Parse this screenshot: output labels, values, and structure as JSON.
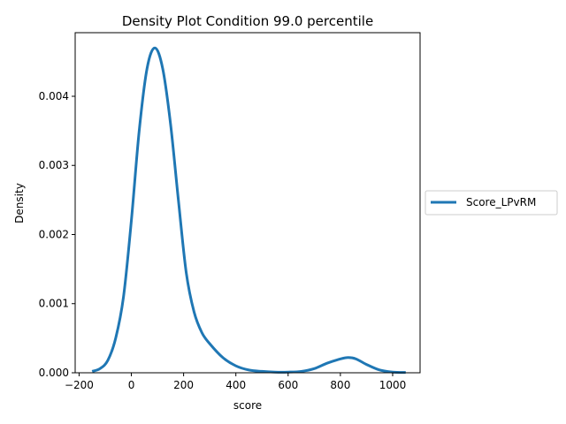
{
  "chart_data": {
    "type": "line",
    "title": "Density Plot Condition 99.0 percentile",
    "xlabel": "score",
    "ylabel": "Density",
    "xlim": [
      -215,
      1105
    ],
    "ylim": [
      0,
      0.00492
    ],
    "xticks": [
      -200,
      0,
      200,
      400,
      600,
      800,
      1000
    ],
    "xtick_labels": [
      "−200",
      "0",
      "200",
      "400",
      "600",
      "800",
      "1000"
    ],
    "yticks": [
      0,
      0.001,
      0.002,
      0.003,
      0.004
    ],
    "ytick_labels": [
      "0.000",
      "0.001",
      "0.002",
      "0.003",
      "0.004"
    ],
    "grid": false,
    "legend_position": "right-outside",
    "series": [
      {
        "name": "Score_LPvRM",
        "color": "#1f77b4",
        "x": [
          -150,
          -120,
          -90,
          -60,
          -30,
          0,
          30,
          60,
          90,
          120,
          150,
          180,
          210,
          240,
          270,
          300,
          350,
          400,
          450,
          500,
          550,
          600,
          650,
          700,
          750,
          800,
          830,
          860,
          900,
          950,
          1000,
          1050
        ],
        "y": [
          2e-05,
          6e-05,
          0.00018,
          0.0005,
          0.0011,
          0.0022,
          0.0035,
          0.0044,
          0.0047,
          0.0044,
          0.0036,
          0.0025,
          0.00145,
          0.00088,
          0.00058,
          0.00042,
          0.00022,
          0.0001,
          4e-05,
          2e-05,
          1e-05,
          1e-05,
          2e-05,
          6e-05,
          0.00014,
          0.0002,
          0.00022,
          0.0002,
          0.00012,
          4e-05,
          1e-05,
          5e-06
        ]
      }
    ]
  }
}
